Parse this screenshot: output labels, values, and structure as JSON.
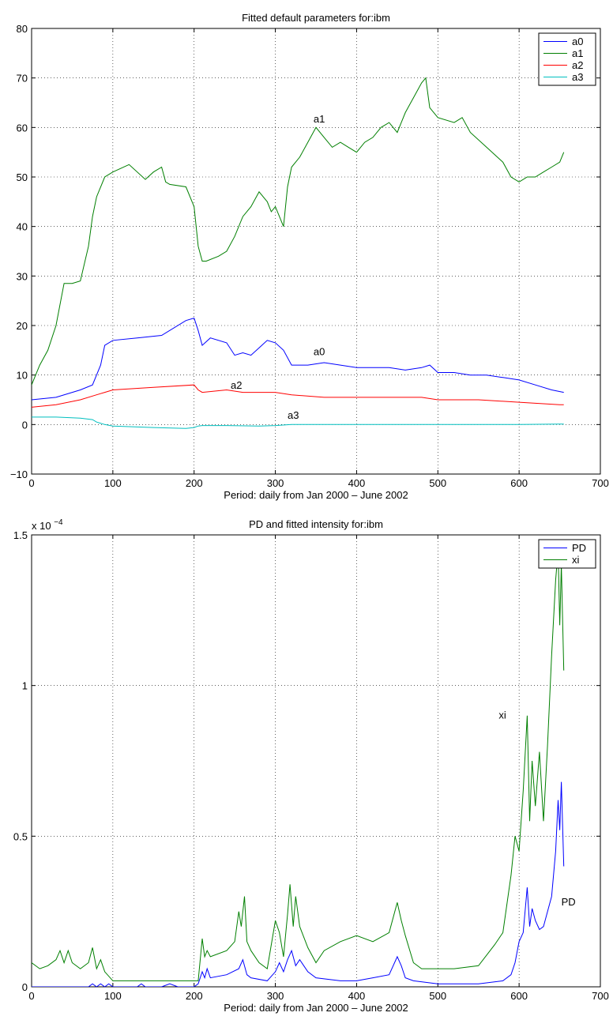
{
  "chart_data": [
    {
      "type": "line",
      "title": "Fitted default parameters for:ibm",
      "xlabel": "Period: daily from Jan 2000 – June 2002",
      "ylabel": "",
      "xlim": [
        0,
        700
      ],
      "ylim": [
        -10,
        80
      ],
      "xticks": [
        0,
        100,
        200,
        300,
        400,
        500,
        600,
        700
      ],
      "yticks": [
        -10,
        0,
        10,
        20,
        30,
        40,
        50,
        60,
        70,
        80
      ],
      "grid": true,
      "legend_position": "top-right",
      "series": [
        {
          "name": "a0",
          "color": "#0000ff",
          "x": [
            0,
            30,
            60,
            75,
            85,
            90,
            100,
            130,
            160,
            190,
            200,
            205,
            210,
            220,
            240,
            250,
            260,
            270,
            280,
            290,
            300,
            310,
            320,
            340,
            360,
            380,
            400,
            420,
            440,
            460,
            480,
            490,
            500,
            520,
            540,
            560,
            580,
            600,
            620,
            640,
            655
          ],
          "values": [
            5,
            5.5,
            7,
            8,
            12,
            16,
            17,
            17.5,
            18,
            21,
            21.5,
            19,
            16,
            17.5,
            16.5,
            14,
            14.5,
            14,
            15.5,
            17,
            16.5,
            15,
            12,
            12,
            12.5,
            12,
            11.5,
            11.5,
            11.5,
            11,
            11.5,
            12,
            10.5,
            10.5,
            10,
            10,
            9.5,
            9,
            8,
            7,
            6.5
          ]
        },
        {
          "name": "a1",
          "color": "#007f00",
          "x": [
            0,
            5,
            10,
            20,
            30,
            40,
            50,
            60,
            70,
            75,
            80,
            90,
            100,
            120,
            140,
            150,
            160,
            165,
            170,
            190,
            200,
            205,
            210,
            215,
            230,
            240,
            250,
            260,
            270,
            280,
            290,
            295,
            300,
            310,
            315,
            320,
            330,
            340,
            350,
            360,
            370,
            380,
            390,
            400,
            410,
            420,
            430,
            440,
            450,
            460,
            470,
            480,
            485,
            490,
            500,
            520,
            530,
            540,
            560,
            580,
            590,
            600,
            610,
            620,
            630,
            640,
            650,
            655
          ],
          "values": [
            8,
            10,
            12,
            15,
            20,
            28.5,
            28.5,
            29,
            36,
            42,
            46,
            50,
            51,
            52.5,
            49.5,
            51,
            52,
            49,
            48.5,
            48,
            44,
            36,
            33,
            33,
            34,
            35,
            38,
            42,
            44,
            47,
            45,
            43,
            44,
            40,
            48,
            52,
            54,
            57,
            60,
            58,
            56,
            57,
            56,
            55,
            57,
            58,
            60,
            61,
            59,
            63,
            66,
            69,
            70,
            64,
            62,
            61,
            62,
            59,
            56,
            53,
            50,
            49,
            50,
            50,
            51,
            52,
            53,
            55
          ]
        },
        {
          "name": "a2",
          "color": "#ff0000",
          "x": [
            0,
            30,
            60,
            80,
            90,
            100,
            150,
            200,
            205,
            210,
            240,
            260,
            300,
            320,
            360,
            400,
            440,
            480,
            500,
            550,
            600,
            650,
            655
          ],
          "values": [
            3.5,
            4,
            5,
            6,
            6.5,
            7,
            7.5,
            8,
            7,
            6.5,
            7,
            6.5,
            6.5,
            6,
            5.5,
            5.5,
            5.5,
            5.5,
            5,
            5,
            4.5,
            4,
            4
          ]
        },
        {
          "name": "a3",
          "color": "#00bfbf",
          "x": [
            0,
            30,
            60,
            75,
            80,
            90,
            100,
            150,
            190,
            200,
            205,
            210,
            240,
            280,
            300,
            320,
            360,
            400,
            450,
            500,
            550,
            600,
            650,
            655
          ],
          "values": [
            1.5,
            1.5,
            1.3,
            1,
            0.5,
            0,
            -0.3,
            -0.6,
            -0.8,
            -0.6,
            -0.3,
            -0.2,
            -0.2,
            -0.3,
            -0.2,
            0,
            0,
            0,
            0,
            0,
            0,
            0,
            0.1,
            0.1
          ]
        }
      ],
      "annotations": [
        {
          "text": "a1",
          "x": 347,
          "y": 61
        },
        {
          "text": "a0",
          "x": 347,
          "y": 14
        },
        {
          "text": "a2",
          "x": 245,
          "y": 7.2
        },
        {
          "text": "a3",
          "x": 315,
          "y": 1.2
        }
      ]
    },
    {
      "type": "line",
      "title": "PD and fitted intensity for:ibm",
      "xlabel": "Period: daily from Jan 2000 – June 2002",
      "ylabel": "",
      "y_scale_note": "x 10",
      "y_scale_exponent": "−4",
      "xlim": [
        0,
        700
      ],
      "ylim": [
        0,
        1.5
      ],
      "xticks": [
        0,
        100,
        200,
        300,
        400,
        500,
        600,
        700
      ],
      "yticks": [
        0,
        0.5,
        1,
        1.5
      ],
      "ytick_labels": [
        "0",
        "0.5",
        "1",
        "1.5"
      ],
      "grid": true,
      "legend_position": "top-right",
      "series": [
        {
          "name": "PD",
          "color": "#0000ff",
          "x": [
            0,
            70,
            75,
            80,
            85,
            90,
            95,
            100,
            130,
            135,
            140,
            160,
            170,
            180,
            200,
            205,
            210,
            213,
            216,
            220,
            240,
            255,
            260,
            265,
            270,
            290,
            300,
            305,
            310,
            315,
            320,
            325,
            330,
            340,
            350,
            380,
            400,
            420,
            440,
            450,
            455,
            460,
            470,
            500,
            550,
            580,
            590,
            595,
            600,
            605,
            610,
            613,
            616,
            620,
            625,
            630,
            640,
            645,
            648,
            650,
            652,
            655
          ],
          "values": [
            0,
            0,
            0.01,
            0,
            0.01,
            0,
            0.01,
            0,
            0,
            0.01,
            0,
            0,
            0.01,
            0,
            0,
            0.01,
            0.05,
            0.03,
            0.06,
            0.03,
            0.04,
            0.06,
            0.09,
            0.04,
            0.03,
            0.02,
            0.05,
            0.08,
            0.05,
            0.09,
            0.12,
            0.07,
            0.09,
            0.05,
            0.03,
            0.02,
            0.02,
            0.03,
            0.04,
            0.1,
            0.07,
            0.03,
            0.02,
            0.01,
            0.01,
            0.02,
            0.04,
            0.08,
            0.15,
            0.18,
            0.33,
            0.2,
            0.26,
            0.22,
            0.19,
            0.2,
            0.3,
            0.45,
            0.62,
            0.52,
            0.68,
            0.4
          ]
        },
        {
          "name": "xi",
          "color": "#007f00",
          "x": [
            0,
            10,
            20,
            30,
            35,
            40,
            45,
            50,
            60,
            70,
            75,
            80,
            85,
            90,
            100,
            130,
            150,
            170,
            200,
            205,
            210,
            213,
            216,
            220,
            240,
            250,
            255,
            258,
            262,
            265,
            270,
            280,
            290,
            300,
            305,
            310,
            315,
            318,
            322,
            325,
            330,
            340,
            350,
            360,
            380,
            400,
            420,
            440,
            450,
            455,
            460,
            470,
            480,
            500,
            520,
            550,
            570,
            580,
            590,
            595,
            600,
            605,
            610,
            613,
            616,
            620,
            625,
            630,
            635,
            640,
            645,
            648,
            650,
            652,
            655
          ],
          "values": [
            0.08,
            0.06,
            0.07,
            0.09,
            0.12,
            0.08,
            0.12,
            0.08,
            0.06,
            0.08,
            0.13,
            0.06,
            0.09,
            0.05,
            0.02,
            0.02,
            0.02,
            0.02,
            0.02,
            0.02,
            0.16,
            0.1,
            0.12,
            0.1,
            0.12,
            0.15,
            0.25,
            0.2,
            0.3,
            0.15,
            0.12,
            0.08,
            0.06,
            0.22,
            0.18,
            0.1,
            0.24,
            0.34,
            0.2,
            0.3,
            0.2,
            0.13,
            0.08,
            0.12,
            0.15,
            0.17,
            0.15,
            0.18,
            0.28,
            0.22,
            0.17,
            0.08,
            0.06,
            0.06,
            0.06,
            0.07,
            0.14,
            0.18,
            0.37,
            0.5,
            0.45,
            0.65,
            0.9,
            0.55,
            0.75,
            0.6,
            0.78,
            0.55,
            0.8,
            1.1,
            1.35,
            1.45,
            1.2,
            1.4,
            1.05
          ]
        }
      ],
      "annotations": [
        {
          "text": "xi",
          "x": 575,
          "y": 0.89
        },
        {
          "text": "PD",
          "x": 652,
          "y": 0.27
        }
      ]
    }
  ]
}
